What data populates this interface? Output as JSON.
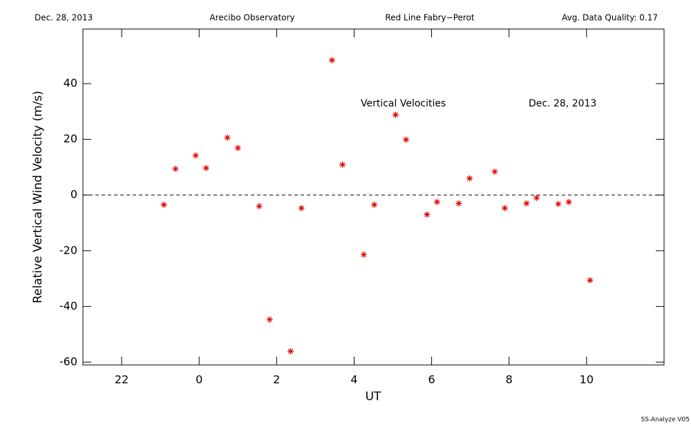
{
  "chart_data": {
    "type": "scatter",
    "header": [
      "Dec. 28, 2013",
      "Arecibo Observatory",
      "Red Line Fabry−Perot",
      "Avg. Data Quality: 0.17"
    ],
    "annotations": [
      "Vertical Velocities",
      "Dec. 28, 2013"
    ],
    "footer": "SS-Analyze V05",
    "xlabel": "UT",
    "ylabel": "Relative Vertical Wind Velocity (m/s)",
    "color": "#e00000",
    "hline": 0,
    "x": [
      23.09,
      23.39,
      23.91,
      24.18,
      24.73,
      25.0,
      25.55,
      25.82,
      26.36,
      26.64,
      27.43,
      27.7,
      28.25,
      28.52,
      29.07,
      29.34,
      29.88,
      30.14,
      30.7,
      30.98,
      31.63,
      31.89,
      32.45,
      32.71,
      33.27,
      33.54,
      34.09
    ],
    "values": [
      -3.5,
      9.4,
      14.2,
      9.7,
      20.6,
      16.9,
      -4.0,
      -44.7,
      -56.1,
      -4.7,
      48.4,
      10.9,
      -21.4,
      -3.5,
      28.8,
      19.9,
      -7.0,
      -2.5,
      -3.0,
      6.0,
      8.4,
      -4.7,
      -3.0,
      -1.0,
      -3.2,
      -2.5,
      -30.6
    ],
    "xlim": [
      21,
      36
    ],
    "xticks": [
      22,
      {
        "value": 24,
        "label": "0"
      },
      {
        "value": 26,
        "label": "2"
      },
      {
        "value": 28,
        "label": "4"
      },
      {
        "value": 30,
        "label": "6"
      },
      {
        "value": 32,
        "label": "8"
      },
      {
        "value": 34,
        "label": "10"
      }
    ],
    "ylim": [
      -61,
      59.6
    ],
    "yticks": [
      -60,
      -40,
      -20,
      0,
      20,
      40
    ]
  }
}
